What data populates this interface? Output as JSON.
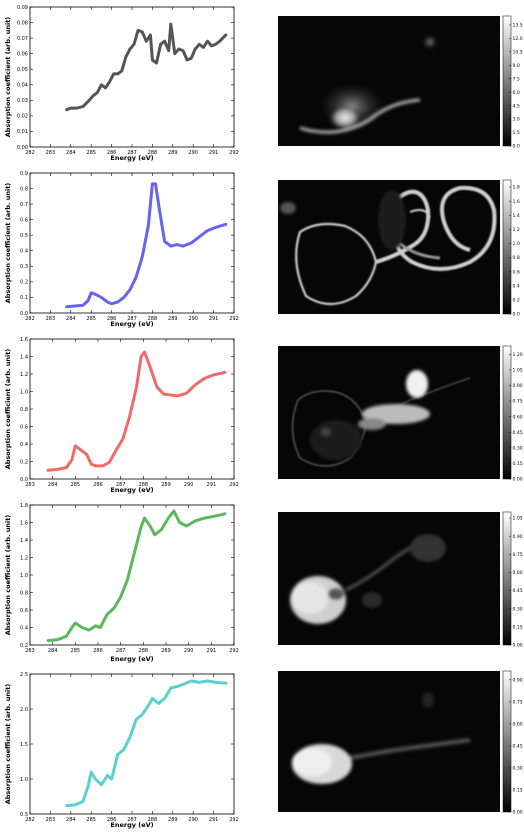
{
  "chart_data": [
    {
      "type": "line",
      "color": "#555555",
      "xlabel": "Energy (eV)",
      "ylabel": "Absorption coefficient (arb. unit)",
      "xlim": [
        282,
        292
      ],
      "ylim": [
        0,
        0.09
      ],
      "xticks": [
        282,
        283,
        284,
        285,
        286,
        287,
        288,
        289,
        290,
        291,
        292
      ],
      "xtick_labels": [
        "282",
        "283",
        "284",
        "285",
        "286",
        "287",
        "288",
        "289",
        "290",
        "291",
        "292"
      ],
      "yticks": [
        0,
        0.01,
        0.02,
        0.03,
        0.04,
        0.05,
        0.06,
        0.07,
        0.08,
        0.09
      ],
      "ytick_labels": [
        "0.00",
        "0.01",
        "0.02",
        "0.03",
        "0.04",
        "0.05",
        "0.06",
        "0.07",
        "0.08",
        "0.09"
      ],
      "x": [
        283.8,
        284.0,
        284.3,
        284.6,
        284.9,
        285.1,
        285.3,
        285.5,
        285.7,
        285.9,
        286.1,
        286.3,
        286.5,
        286.7,
        286.9,
        287.1,
        287.3,
        287.5,
        287.7,
        287.9,
        288.0,
        288.2,
        288.4,
        288.6,
        288.8,
        288.9,
        289.1,
        289.3,
        289.5,
        289.7,
        289.9,
        290.1,
        290.3,
        290.5,
        290.7,
        290.9,
        291.1,
        291.3,
        291.6
      ],
      "y": [
        0.024,
        0.025,
        0.025,
        0.026,
        0.03,
        0.033,
        0.035,
        0.04,
        0.038,
        0.042,
        0.047,
        0.047,
        0.049,
        0.058,
        0.063,
        0.066,
        0.075,
        0.074,
        0.068,
        0.072,
        0.056,
        0.054,
        0.066,
        0.068,
        0.062,
        0.079,
        0.06,
        0.063,
        0.062,
        0.056,
        0.057,
        0.063,
        0.066,
        0.064,
        0.068,
        0.065,
        0.066,
        0.068,
        0.072
      ],
      "image": {
        "colorbar_ticks": [
          "0.0",
          "1.5",
          "3.0",
          "4.5",
          "6.0",
          "7.5",
          "9.0",
          "10.5",
          "12.0",
          "13.5"
        ],
        "colorbar_max": 14.5
      }
    },
    {
      "type": "line",
      "color": "#6464ee",
      "xlabel": "Energy (eV)",
      "ylabel": "Absorption coefficient (arb. unit)",
      "xlim": [
        282,
        292
      ],
      "ylim": [
        0,
        0.9
      ],
      "xticks": [
        282,
        283,
        284,
        285,
        286,
        287,
        288,
        289,
        290,
        291,
        292
      ],
      "xtick_labels": [
        "282",
        "283",
        "284",
        "285",
        "286",
        "287",
        "288",
        "289",
        "290",
        "291",
        "292"
      ],
      "yticks": [
        0,
        0.1,
        0.2,
        0.3,
        0.4,
        0.5,
        0.6,
        0.7,
        0.8,
        0.9
      ],
      "ytick_labels": [
        "0.0",
        "0.1",
        "0.2",
        "0.3",
        "0.4",
        "0.5",
        "0.6",
        "0.7",
        "0.8",
        "0.9"
      ],
      "x": [
        283.8,
        284.2,
        284.6,
        284.85,
        285.0,
        285.2,
        285.5,
        285.8,
        286.0,
        286.3,
        286.6,
        286.9,
        287.2,
        287.5,
        287.8,
        288.0,
        288.15,
        288.35,
        288.6,
        288.9,
        289.2,
        289.5,
        289.9,
        290.3,
        290.7,
        291.1,
        291.6
      ],
      "y": [
        0.04,
        0.045,
        0.05,
        0.08,
        0.13,
        0.12,
        0.1,
        0.07,
        0.06,
        0.07,
        0.1,
        0.15,
        0.23,
        0.36,
        0.56,
        0.83,
        0.83,
        0.66,
        0.46,
        0.43,
        0.44,
        0.43,
        0.45,
        0.49,
        0.53,
        0.55,
        0.57
      ],
      "image": {
        "colorbar_ticks": [
          "0.0",
          "0.2",
          "0.4",
          "0.6",
          "0.8",
          "1.0",
          "1.2",
          "1.4",
          "1.6",
          "1.8"
        ],
        "colorbar_max": 1.9
      }
    },
    {
      "type": "line",
      "color": "#f06a6a",
      "xlabel": "Energy (eV)",
      "ylabel": "Absorption coefficient (arb. unit)",
      "xlim": [
        283,
        292
      ],
      "ylim": [
        0,
        1.6
      ],
      "xticks": [
        283,
        284,
        285,
        286,
        287,
        288,
        289,
        290,
        291,
        292
      ],
      "xtick_labels": [
        "283",
        "284",
        "285",
        "286",
        "287",
        "288",
        "289",
        "290",
        "291",
        "292"
      ],
      "yticks": [
        0,
        0.2,
        0.4,
        0.6,
        0.8,
        1.0,
        1.2,
        1.4,
        1.6
      ],
      "ytick_labels": [
        "0.0",
        "0.2",
        "0.4",
        "0.6",
        "0.8",
        "1.0",
        "1.2",
        "1.4",
        "1.6"
      ],
      "x": [
        283.8,
        284.2,
        284.6,
        284.85,
        285.0,
        285.2,
        285.5,
        285.7,
        285.9,
        286.2,
        286.5,
        286.8,
        287.1,
        287.4,
        287.7,
        287.9,
        288.05,
        288.3,
        288.6,
        288.9,
        289.2,
        289.5,
        289.9,
        290.3,
        290.7,
        291.1,
        291.6
      ],
      "y": [
        0.1,
        0.11,
        0.13,
        0.22,
        0.38,
        0.34,
        0.28,
        0.17,
        0.15,
        0.15,
        0.19,
        0.33,
        0.46,
        0.72,
        1.05,
        1.4,
        1.45,
        1.28,
        1.05,
        0.97,
        0.96,
        0.95,
        0.98,
        1.08,
        1.15,
        1.19,
        1.22
      ],
      "image": {
        "colorbar_ticks": [
          "0.00",
          "0.15",
          "0.30",
          "0.45",
          "0.60",
          "0.75",
          "0.90",
          "1.05",
          "1.20"
        ],
        "colorbar_max": 1.28
      }
    },
    {
      "type": "line",
      "color": "#5cb85c",
      "xlabel": "Energy (eV)",
      "ylabel": "Absorption coefficient (arb. unit)",
      "xlim": [
        283,
        292
      ],
      "ylim": [
        0.2,
        1.8
      ],
      "xticks": [
        283,
        284,
        285,
        286,
        287,
        288,
        289,
        290,
        291,
        292
      ],
      "xtick_labels": [
        "283",
        "284",
        "285",
        "286",
        "287",
        "288",
        "289",
        "290",
        "291",
        "292"
      ],
      "yticks": [
        0.2,
        0.4,
        0.6,
        0.8,
        1.0,
        1.2,
        1.4,
        1.6,
        1.8
      ],
      "ytick_labels": [
        "0.2",
        "0.4",
        "0.6",
        "0.8",
        "1.0",
        "1.2",
        "1.4",
        "1.6",
        "1.8"
      ],
      "x": [
        283.8,
        284.2,
        284.6,
        284.9,
        285.0,
        285.3,
        285.6,
        285.9,
        286.1,
        286.4,
        286.7,
        287.0,
        287.3,
        287.6,
        287.9,
        288.05,
        288.3,
        288.5,
        288.8,
        289.1,
        289.35,
        289.6,
        289.9,
        290.3,
        290.7,
        291.1,
        291.6
      ],
      "y": [
        0.25,
        0.26,
        0.3,
        0.42,
        0.45,
        0.4,
        0.37,
        0.42,
        0.4,
        0.55,
        0.62,
        0.75,
        0.95,
        1.25,
        1.55,
        1.65,
        1.56,
        1.46,
        1.52,
        1.65,
        1.73,
        1.6,
        1.56,
        1.62,
        1.65,
        1.67,
        1.7
      ],
      "image": {
        "colorbar_ticks": [
          "0.00",
          "0.15",
          "0.30",
          "0.45",
          "0.60",
          "0.75",
          "0.90",
          "1.05"
        ],
        "colorbar_max": 1.1
      }
    },
    {
      "type": "line",
      "color": "#5ad0d0",
      "xlabel": "Energy (eV)",
      "ylabel": "Absorption coefficient (arb. unit)",
      "xlim": [
        282,
        292
      ],
      "ylim": [
        0.5,
        2.5
      ],
      "xticks": [
        282,
        283,
        284,
        285,
        286,
        287,
        288,
        289,
        290,
        291,
        292
      ],
      "xtick_labels": [
        "282",
        "283",
        "284",
        "285",
        "286",
        "287",
        "288",
        "289",
        "290",
        "291",
        "292"
      ],
      "yticks": [
        0.5,
        1.0,
        1.5,
        2.0,
        2.5
      ],
      "ytick_labels": [
        "0.5",
        "1.0",
        "1.5",
        "2.0",
        "2.5"
      ],
      "x": [
        283.8,
        284.2,
        284.6,
        284.85,
        285.0,
        285.2,
        285.5,
        285.8,
        286.0,
        286.3,
        286.6,
        286.9,
        287.2,
        287.5,
        287.8,
        288.0,
        288.3,
        288.6,
        288.9,
        289.2,
        289.5,
        289.9,
        290.3,
        290.7,
        291.1,
        291.6
      ],
      "y": [
        0.62,
        0.63,
        0.68,
        0.9,
        1.1,
        1.0,
        0.92,
        1.05,
        1.0,
        1.35,
        1.42,
        1.6,
        1.85,
        1.92,
        2.05,
        2.15,
        2.08,
        2.15,
        2.3,
        2.32,
        2.35,
        2.4,
        2.38,
        2.4,
        2.38,
        2.37
      ],
      "image": {
        "colorbar_ticks": [
          "0.00",
          "0.15",
          "0.30",
          "0.45",
          "0.60",
          "0.75",
          "0.90"
        ],
        "colorbar_max": 0.96
      }
    }
  ]
}
